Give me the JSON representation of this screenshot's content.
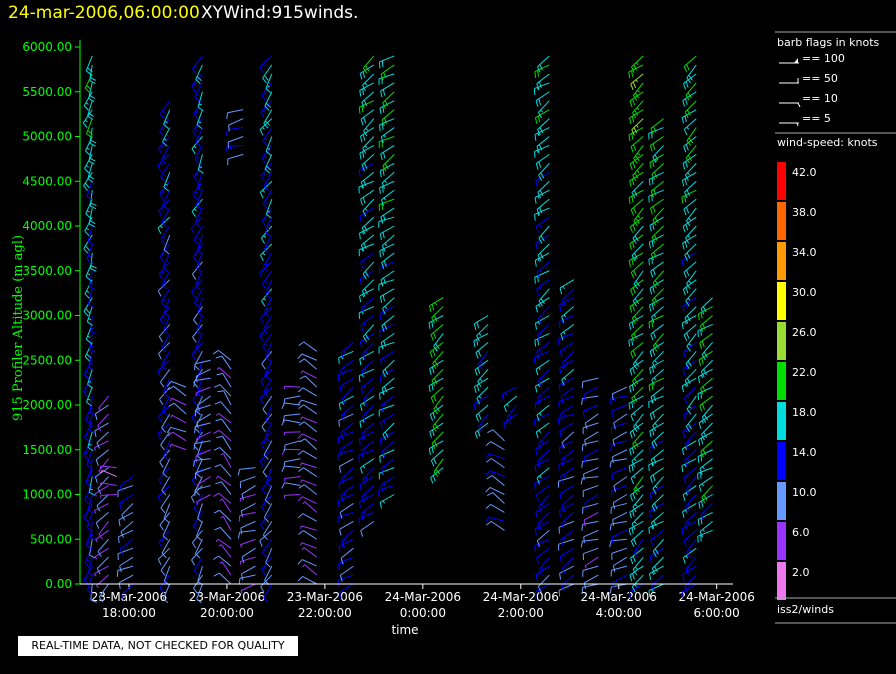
{
  "title": {
    "date": "24-mar-2006,06:00:00",
    "main": "XYWind:915winds."
  },
  "notice": "REAL-TIME DATA, NOT CHECKED FOR QUALITY",
  "legend": {
    "barb_title": "barb flags in knots",
    "barbs": [
      {
        "label": "== 100"
      },
      {
        "label": "== 50"
      },
      {
        "label": "== 10"
      },
      {
        "label": "== 5"
      }
    ],
    "speed_title": "wind-speed: knots",
    "speed_levels": [
      {
        "label": "42.0",
        "color": "#ff0000"
      },
      {
        "label": "38.0",
        "color": "#ff6600"
      },
      {
        "label": "34.0",
        "color": "#ff9900"
      },
      {
        "label": "30.0",
        "color": "#ffff00"
      },
      {
        "label": "26.0",
        "color": "#99dd33"
      },
      {
        "label": "22.0",
        "color": "#00dd00"
      },
      {
        "label": "18.0",
        "color": "#00dddd"
      },
      {
        "label": "14.0",
        "color": "#0000ff"
      },
      {
        "label": "10.0",
        "color": "#6699ff"
      },
      {
        "label": "6.0",
        "color": "#9933ff"
      },
      {
        "label": "2.0",
        "color": "#ee77ee"
      }
    ],
    "source": "iss2/winds"
  },
  "chart_data": {
    "type": "scatter",
    "xlabel": "time",
    "ylabel": "915 Profiler Altitude (m agl)",
    "ylim": [
      0,
      6000
    ],
    "xlim": [
      "2006-03-23 17:00",
      "2006-03-24 06:20"
    ],
    "y_ticks": [
      "0.00",
      "500.00",
      "1000.00",
      "1500.00",
      "2000.00",
      "2500.00",
      "3000.00",
      "3500.00",
      "4000.00",
      "4500.00",
      "5000.00",
      "5500.00",
      "6000.00"
    ],
    "x_ticks": [
      {
        "date": "23-Mar-2006",
        "time": "18:00:00"
      },
      {
        "date": "23-Mar-2006",
        "time": "20:00:00"
      },
      {
        "date": "23-Mar-2006",
        "time": "22:00:00"
      },
      {
        "date": "24-Mar-2006",
        "time": "0:00:00"
      },
      {
        "date": "24-Mar-2006",
        "time": "2:00:00"
      },
      {
        "date": "24-Mar-2006",
        "time": "4:00:00"
      },
      {
        "date": "24-Mar-2006",
        "time": "6:00:00"
      }
    ],
    "profiles": [
      {
        "time": "17:15",
        "alt_min": 0,
        "alt_max": 5950,
        "speed": 13,
        "dir": 200
      },
      {
        "time": "17:35",
        "alt_min": 0,
        "alt_max": 2100,
        "speed": 7,
        "dir": 230
      },
      {
        "time": "17:45",
        "alt_min": 1000,
        "alt_max": 1350,
        "speed": 4,
        "dir": 280
      },
      {
        "time": "18:05",
        "alt_min": 0,
        "alt_max": 1200,
        "speed": 10,
        "dir": 240
      },
      {
        "time": "18:50",
        "alt_min": 0,
        "alt_max": 5450,
        "speed": 10,
        "dir": 215
      },
      {
        "time": "19:10",
        "alt_min": 1500,
        "alt_max": 2200,
        "speed": 6,
        "dir": 300
      },
      {
        "time": "19:30",
        "alt_min": 0,
        "alt_max": 5950,
        "speed": 10,
        "dir": 210
      },
      {
        "time": "19:40",
        "alt_min": 1000,
        "alt_max": 2500,
        "speed": 7,
        "dir": 250
      },
      {
        "time": "20:05",
        "alt_min": 0,
        "alt_max": 2500,
        "speed": 7,
        "dir": 320
      },
      {
        "time": "20:20",
        "alt_min": 4800,
        "alt_max": 5350,
        "speed": 6,
        "dir": 260
      },
      {
        "time": "20:35",
        "alt_min": 0,
        "alt_max": 1300,
        "speed": 8,
        "dir": 250
      },
      {
        "time": "20:55",
        "alt_min": 0,
        "alt_max": 5950,
        "speed": 11,
        "dir": 215
      },
      {
        "time": "21:30",
        "alt_min": 1000,
        "alt_max": 2250,
        "speed": 7,
        "dir": 270
      },
      {
        "time": "21:50",
        "alt_min": 0,
        "alt_max": 2600,
        "speed": 7,
        "dir": 300
      },
      {
        "time": "22:35",
        "alt_min": 0,
        "alt_max": 2700,
        "speed": 12,
        "dir": 240
      },
      {
        "time": "23:00",
        "alt_min": 700,
        "alt_max": 5900,
        "speed": 13,
        "dir": 235
      },
      {
        "time": "23:25",
        "alt_min": 1000,
        "alt_max": 5950,
        "speed": 14,
        "dir": 240
      },
      {
        "time": "00:25",
        "alt_min": 1300,
        "alt_max": 3250,
        "speed": 18,
        "dir": 230
      },
      {
        "time": "01:20",
        "alt_min": 1800,
        "alt_max": 3050,
        "speed": 15,
        "dir": 230
      },
      {
        "time": "01:40",
        "alt_min": 600,
        "alt_max": 1600,
        "speed": 10,
        "dir": 300
      },
      {
        "time": "01:55",
        "alt_min": 1900,
        "alt_max": 2200,
        "speed": 13,
        "dir": 230
      },
      {
        "time": "02:35",
        "alt_min": 0,
        "alt_max": 5950,
        "speed": 13,
        "dir": 235
      },
      {
        "time": "03:05",
        "alt_min": 0,
        "alt_max": 3450,
        "speed": 12,
        "dir": 240
      },
      {
        "time": "03:35",
        "alt_min": 0,
        "alt_max": 2300,
        "speed": 9,
        "dir": 250
      },
      {
        "time": "04:10",
        "alt_min": 0,
        "alt_max": 2200,
        "speed": 10,
        "dir": 250
      },
      {
        "time": "04:30",
        "alt_min": 0,
        "alt_max": 5950,
        "speed": 17,
        "dir": 230
      },
      {
        "time": "04:55",
        "alt_min": 0,
        "alt_max": 5200,
        "speed": 16,
        "dir": 235
      },
      {
        "time": "05:35",
        "alt_min": 0,
        "alt_max": 5950,
        "speed": 14,
        "dir": 230
      },
      {
        "time": "05:55",
        "alt_min": 600,
        "alt_max": 3250,
        "speed": 17,
        "dir": 235
      }
    ]
  }
}
